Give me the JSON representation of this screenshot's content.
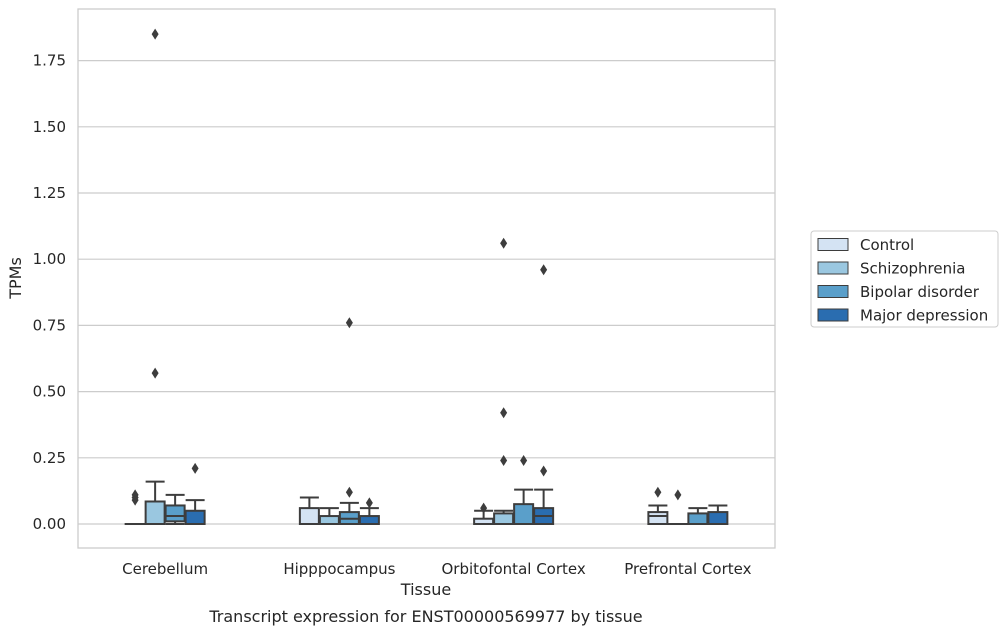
{
  "chart_data": {
    "type": "box",
    "title": "",
    "caption": "Transcript expression for ENST00000569977 by tissue",
    "xlabel": "Tissue",
    "ylabel": "TPMs",
    "ylim": [
      -0.09,
      1.95
    ],
    "yticks": [
      0.0,
      0.25,
      0.5,
      0.75,
      1.0,
      1.25,
      1.5,
      1.75
    ],
    "ytick_labels": [
      "0.00",
      "0.25",
      "0.50",
      "0.75",
      "1.00",
      "1.25",
      "1.50",
      "1.75"
    ],
    "grid": true,
    "legend_position": "right",
    "categories": [
      "Cerebellum",
      "Hipppocampus",
      "Orbitofontal Cortex",
      "Prefrontal Cortex"
    ],
    "series": [
      {
        "name": "Control",
        "color": "#d4e3f3",
        "boxes": [
          {
            "q1": 0.0,
            "median": 0.0,
            "q3": 0.0,
            "whislo": 0.0,
            "whishi": 0.0,
            "fliers": [
              0.09,
              0.1,
              0.11
            ]
          },
          {
            "q1": 0.0,
            "median": 0.0,
            "q3": 0.06,
            "whislo": 0.0,
            "whishi": 0.1,
            "fliers": []
          },
          {
            "q1": 0.0,
            "median": 0.0,
            "q3": 0.02,
            "whislo": 0.0,
            "whishi": 0.05,
            "fliers": [
              0.06
            ]
          },
          {
            "q1": 0.0,
            "median": 0.03,
            "q3": 0.045,
            "whislo": 0.0,
            "whishi": 0.07,
            "fliers": [
              0.12
            ]
          }
        ]
      },
      {
        "name": "Schizophrenia",
        "color": "#9ac7e0",
        "boxes": [
          {
            "q1": 0.0,
            "median": 0.0,
            "q3": 0.085,
            "whislo": 0.0,
            "whishi": 0.16,
            "fliers": [
              0.57,
              1.85
            ]
          },
          {
            "q1": 0.0,
            "median": 0.0,
            "q3": 0.03,
            "whislo": 0.0,
            "whishi": 0.06,
            "fliers": []
          },
          {
            "q1": 0.0,
            "median": 0.0,
            "q3": 0.04,
            "whislo": 0.0,
            "whishi": 0.05,
            "fliers": [
              0.24,
              0.42,
              1.06
            ]
          },
          {
            "q1": 0.0,
            "median": 0.0,
            "q3": 0.0,
            "whislo": 0.0,
            "whishi": 0.0,
            "fliers": [
              0.11
            ]
          }
        ]
      },
      {
        "name": "Bipolar disorder",
        "color": "#5a9fca",
        "boxes": [
          {
            "q1": 0.01,
            "median": 0.03,
            "q3": 0.07,
            "whislo": 0.0,
            "whishi": 0.11,
            "fliers": []
          },
          {
            "q1": 0.0,
            "median": 0.02,
            "q3": 0.045,
            "whislo": 0.0,
            "whishi": 0.08,
            "fliers": [
              0.12,
              0.76
            ]
          },
          {
            "q1": 0.0,
            "median": 0.0,
            "q3": 0.075,
            "whislo": 0.0,
            "whishi": 0.13,
            "fliers": [
              0.24
            ]
          },
          {
            "q1": 0.0,
            "median": 0.0,
            "q3": 0.04,
            "whislo": 0.0,
            "whishi": 0.06,
            "fliers": []
          }
        ]
      },
      {
        "name": "Major depression",
        "color": "#2a6db0",
        "boxes": [
          {
            "q1": 0.0,
            "median": 0.0,
            "q3": 0.05,
            "whislo": 0.0,
            "whishi": 0.09,
            "fliers": [
              0.21
            ]
          },
          {
            "q1": 0.0,
            "median": 0.0,
            "q3": 0.03,
            "whislo": 0.0,
            "whishi": 0.06,
            "fliers": [
              0.08
            ]
          },
          {
            "q1": 0.0,
            "median": 0.03,
            "q3": 0.06,
            "whislo": 0.0,
            "whishi": 0.13,
            "fliers": [
              0.2,
              0.96
            ]
          },
          {
            "q1": 0.0,
            "median": 0.0,
            "q3": 0.045,
            "whislo": 0.0,
            "whishi": 0.07,
            "fliers": []
          }
        ]
      }
    ],
    "colors": {
      "edge": "#3d3d3d",
      "grid": "#cccccc",
      "frame": "#cccccc"
    }
  }
}
